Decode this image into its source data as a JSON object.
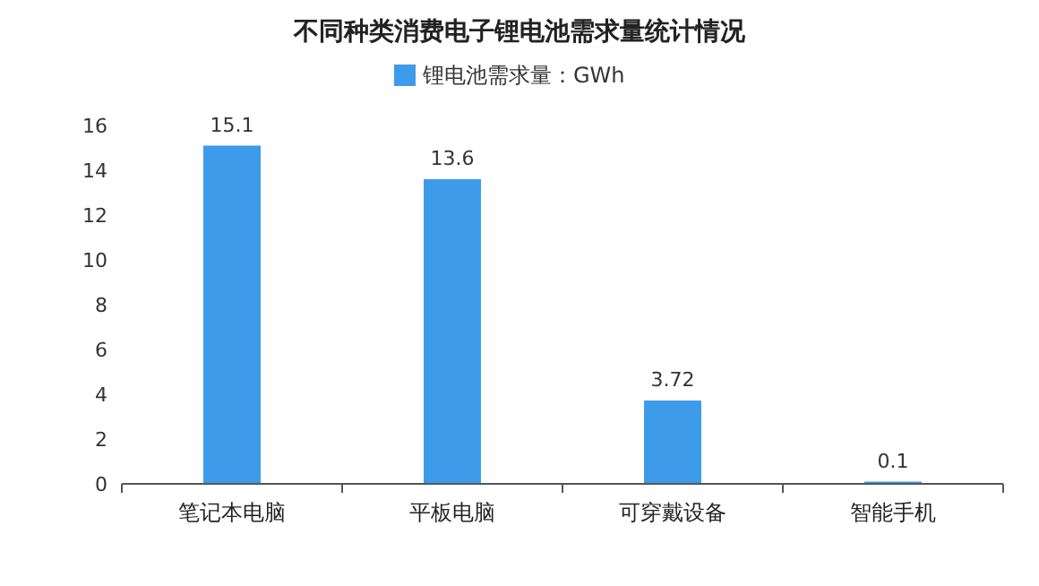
{
  "chart_data": {
    "type": "bar",
    "title": "不同种类消费电子锂电池需求量统计情况",
    "categories": [
      "笔记本电脑",
      "平板电脑",
      "可穿戴设备",
      "智能手机"
    ],
    "series": [
      {
        "name": "锂电池需求量：GWh",
        "color": "#3e9bea",
        "values": [
          15.1,
          13.6,
          3.72,
          0.1
        ]
      }
    ],
    "ylim": [
      0,
      16
    ],
    "yticks": [
      0,
      2,
      4,
      6,
      8,
      10,
      12,
      14,
      16
    ],
    "data_labels": true,
    "legend": "top",
    "grid": false
  }
}
